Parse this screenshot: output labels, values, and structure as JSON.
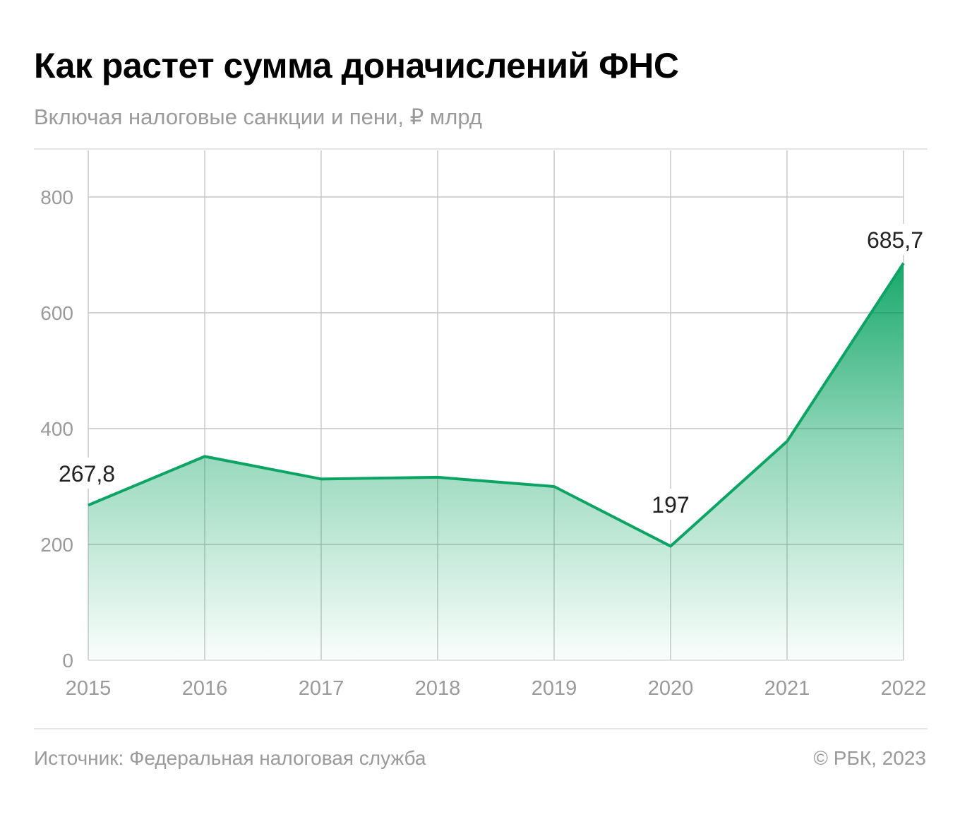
{
  "header": {
    "title": "Как растет сумма доначислений ФНС",
    "subtitle": "Включая налоговые санкции и пени, ₽ млрд"
  },
  "footer": {
    "source": "Источник: Федеральная налоговая служба",
    "copyright": "© РБК, 2023"
  },
  "colors": {
    "line": "#0ba463",
    "fill_top": "#0ba463",
    "grid": "#e3e3e3",
    "axis_text": "#9a9a9a",
    "label_text": "#222222"
  },
  "chart_data": {
    "type": "area",
    "title": "Как растет сумма доначислений ФНС",
    "subtitle": "Включая налоговые санкции и пени, ₽ млрд",
    "xlabel": "",
    "ylabel": "₽ млрд",
    "categories": [
      "2015",
      "2016",
      "2017",
      "2018",
      "2019",
      "2020",
      "2021",
      "2022"
    ],
    "values": [
      267.8,
      352,
      313,
      316,
      300,
      197,
      378,
      685.7
    ],
    "data_labels": [
      {
        "index": 0,
        "text": "267,8"
      },
      {
        "index": 5,
        "text": "197"
      },
      {
        "index": 7,
        "text": "685,7"
      }
    ],
    "yticks": [
      0,
      200,
      400,
      600,
      800
    ],
    "ylim": [
      0,
      880
    ],
    "grid": true,
    "legend": "none",
    "source": "Федеральная налоговая служба"
  }
}
